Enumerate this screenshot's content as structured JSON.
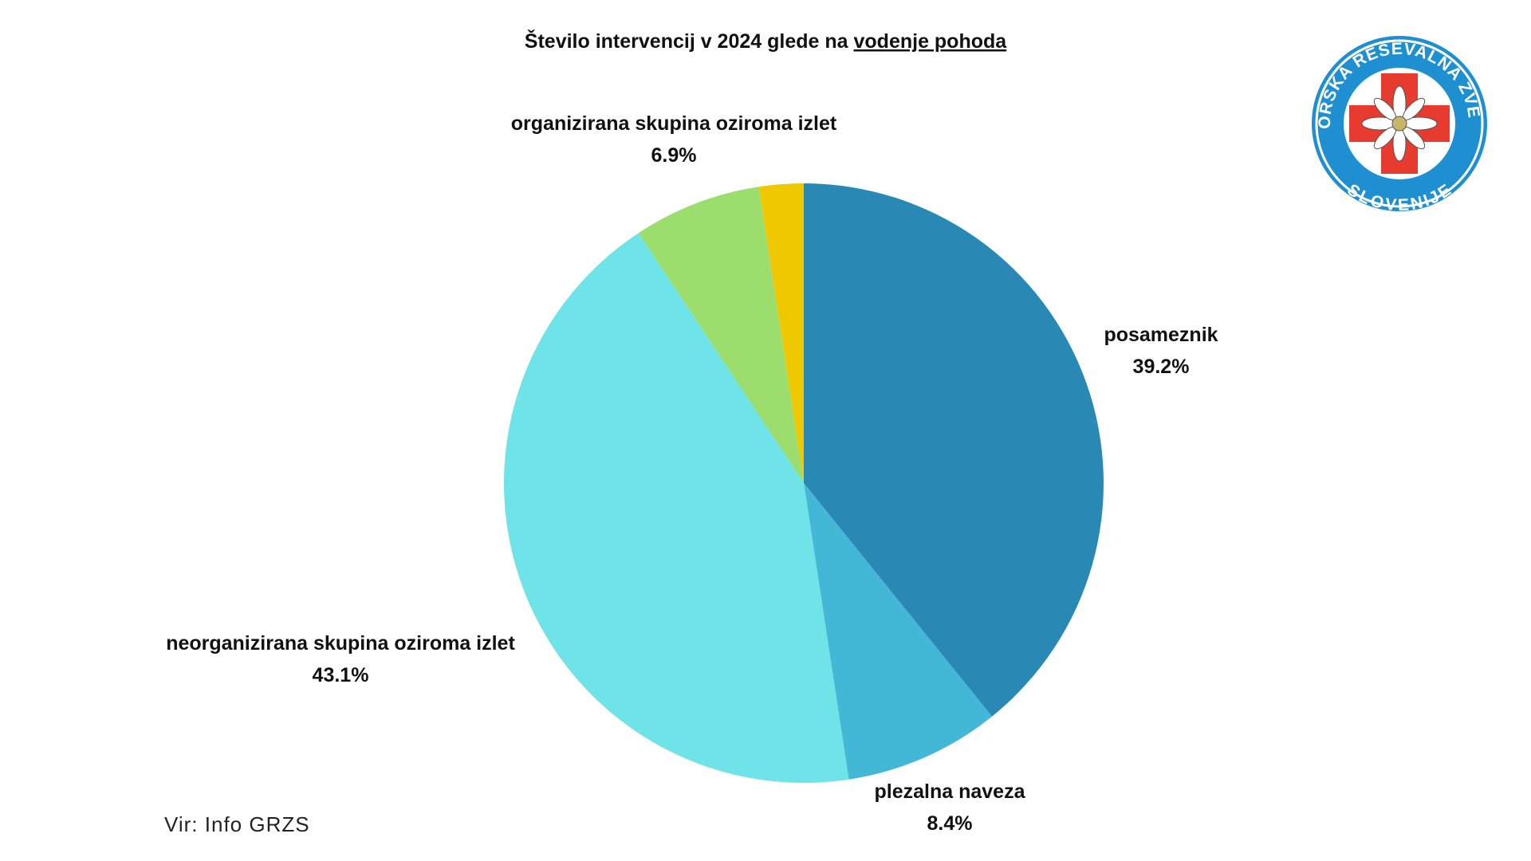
{
  "chart_data": {
    "type": "pie",
    "title": {
      "text": "Število intervencij v 2024 glede na",
      "emphasis": "vodenje pohoda"
    },
    "categories": [
      "posameznik",
      "plezalna naveza",
      "neorganizirana skupina oziroma izlet",
      "organizirana skupina oziroma izlet",
      null
    ],
    "values": [
      39.2,
      8.4,
      43.1,
      6.9,
      2.4
    ],
    "value_labels": [
      "39.2%",
      "8.4%",
      "43.1%",
      "6.9%",
      null
    ],
    "colors": [
      "#2a88b5",
      "#42b7d6",
      "#6ee4e8",
      "#9bde6e",
      "#f0c800"
    ],
    "source": "Vir: Info GRZS"
  },
  "logo": {
    "top_text": "GORSKA REŠEVALNA ZVEZA",
    "bottom_text": "SLOVENIJE"
  }
}
